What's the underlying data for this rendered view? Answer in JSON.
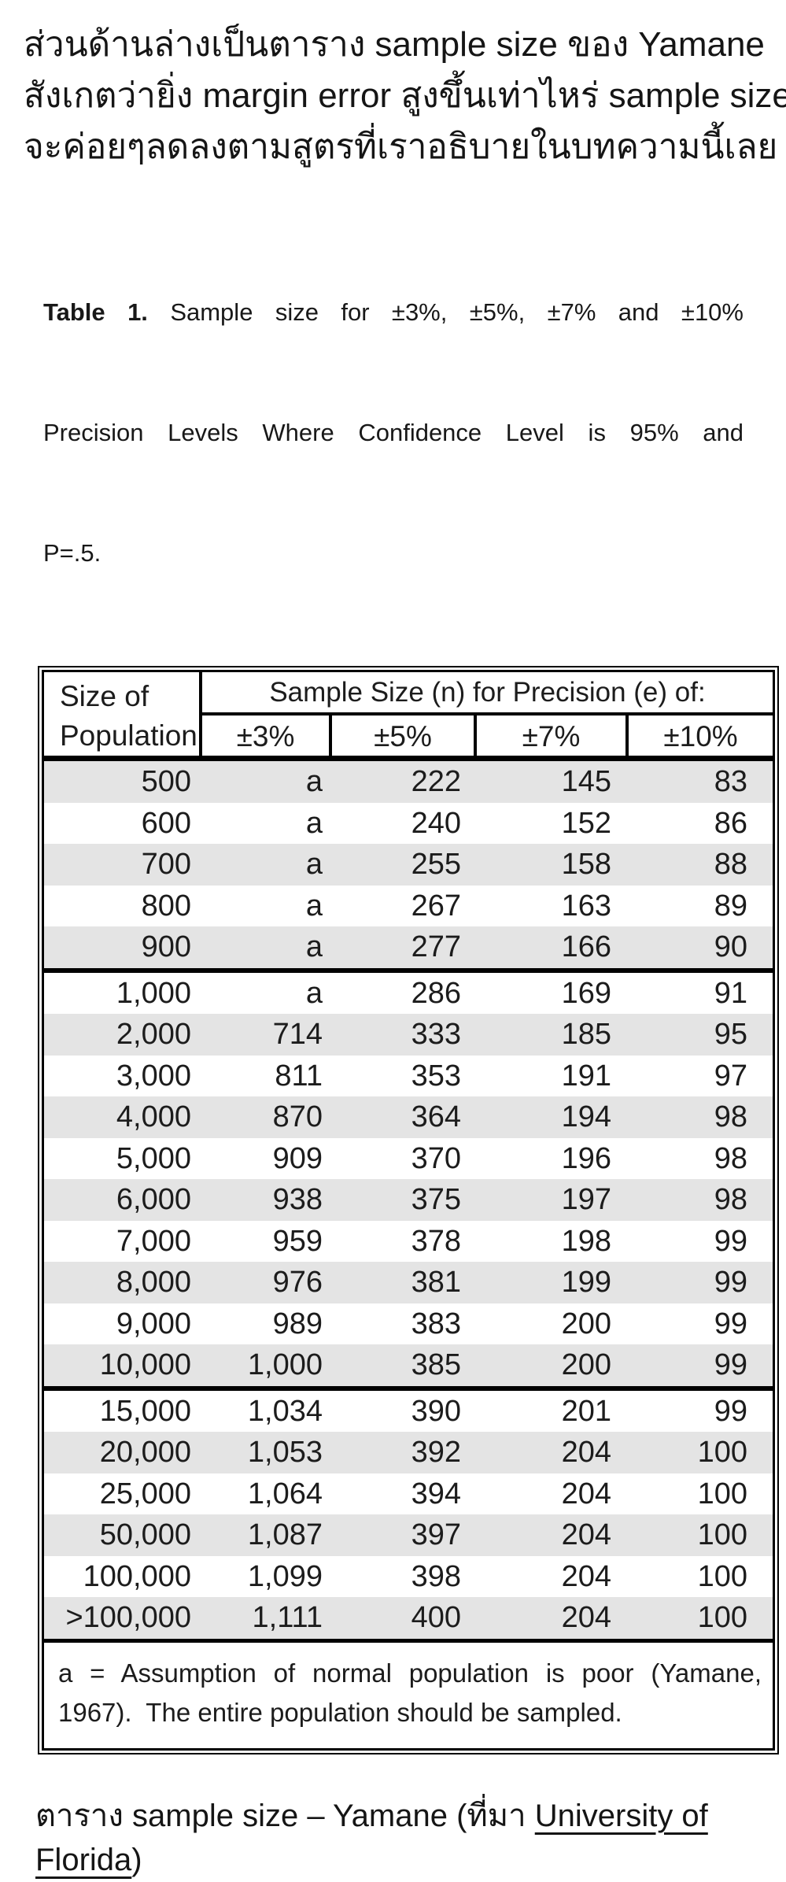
{
  "intro": {
    "lines": [
      "ส่วนด้านล่างเป็นตาราง sample size ของ Yamane",
      "สังเกตว่ายิ่ง margin error สูงขึ้นเท่าไหร่ sample size",
      "จะค่อยๆลดลงตามสูตรที่เราอธิบายในบทความนี้เลย"
    ]
  },
  "table": {
    "title": {
      "bold": "Table 1.",
      "line1": " Sample size for ±3%, ±5%, ±7% and ±10%",
      "line2": "Precision Levels Where Confidence Level is 95% and",
      "line3": "P=.5."
    },
    "header": {
      "row_label_line1": "Size of",
      "row_label_line2": "Population",
      "span_label": "Sample Size (n) for Precision (e) of:",
      "precision_columns": [
        "±3%",
        "±5%",
        "±7%",
        "±10%"
      ]
    },
    "groups": [
      [
        [
          "500",
          "a",
          "222",
          "145",
          "83"
        ],
        [
          "600",
          "a",
          "240",
          "152",
          "86"
        ],
        [
          "700",
          "a",
          "255",
          "158",
          "88"
        ],
        [
          "800",
          "a",
          "267",
          "163",
          "89"
        ],
        [
          "900",
          "a",
          "277",
          "166",
          "90"
        ]
      ],
      [
        [
          "1,000",
          "a",
          "286",
          "169",
          "91"
        ],
        [
          "2,000",
          "714",
          "333",
          "185",
          "95"
        ],
        [
          "3,000",
          "811",
          "353",
          "191",
          "97"
        ],
        [
          "4,000",
          "870",
          "364",
          "194",
          "98"
        ],
        [
          "5,000",
          "909",
          "370",
          "196",
          "98"
        ],
        [
          "6,000",
          "938",
          "375",
          "197",
          "98"
        ],
        [
          "7,000",
          "959",
          "378",
          "198",
          "99"
        ],
        [
          "8,000",
          "976",
          "381",
          "199",
          "99"
        ],
        [
          "9,000",
          "989",
          "383",
          "200",
          "99"
        ],
        [
          "10,000",
          "1,000",
          "385",
          "200",
          "99"
        ]
      ],
      [
        [
          "15,000",
          "1,034",
          "390",
          "201",
          "99"
        ],
        [
          "20,000",
          "1,053",
          "392",
          "204",
          "100"
        ],
        [
          "25,000",
          "1,064",
          "394",
          "204",
          "100"
        ],
        [
          "50,000",
          "1,087",
          "397",
          "204",
          "100"
        ],
        [
          "100,000",
          "1,099",
          "398",
          "204",
          "100"
        ],
        [
          ">100,000",
          "1,111",
          "400",
          "204",
          "100"
        ]
      ]
    ],
    "footnote_lines": [
      "a = Assumption of normal population is poor (Yamane,",
      "1967).  The entire population should be sampled."
    ]
  },
  "caption": {
    "prefix": "ตาราง sample size – Yamane (ที่มา ",
    "link_text": "University of Florida",
    "suffix": ")"
  },
  "colors": {
    "row_shade": "#e4e4e4",
    "border": "#000000",
    "text": "#1c1c1c"
  }
}
